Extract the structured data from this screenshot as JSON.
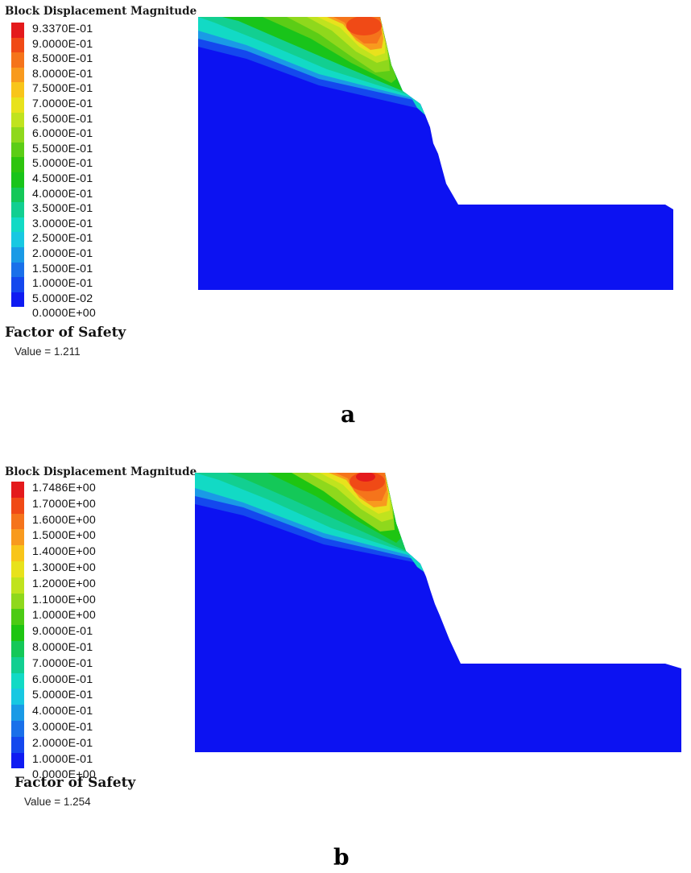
{
  "panels": [
    {
      "legend_title": "Block Displacement Magnitude",
      "legend_values": [
        "9.3370E-01",
        "9.0000E-01",
        "8.5000E-01",
        "8.0000E-01",
        "7.5000E-01",
        "7.0000E-01",
        "6.5000E-01",
        "6.0000E-01",
        "5.5000E-01",
        "5.0000E-01",
        "4.5000E-01",
        "4.0000E-01",
        "3.5000E-01",
        "3.0000E-01",
        "2.5000E-01",
        "2.0000E-01",
        "1.5000E-01",
        "1.0000E-01",
        "5.0000E-02",
        "0.0000E+00"
      ],
      "factor_of_safety_label": "Factor of Safety",
      "factor_of_safety_value": "Value = 1.211",
      "caption": "a"
    },
    {
      "legend_title": "Block Displacement Magnitude",
      "legend_values": [
        "1.7486E+00",
        "1.7000E+00",
        "1.6000E+00",
        "1.5000E+00",
        "1.4000E+00",
        "1.3000E+00",
        "1.2000E+00",
        "1.1000E+00",
        "1.0000E+00",
        "9.0000E-01",
        "8.0000E-01",
        "7.0000E-01",
        "6.0000E-01",
        "5.0000E-01",
        "4.0000E-01",
        "3.0000E-01",
        "2.0000E-01",
        "1.0000E-01",
        "0.0000E+00"
      ],
      "factor_of_safety_label": "Factor of Safety",
      "factor_of_safety_value": "Value = 1.254",
      "caption": "b"
    }
  ],
  "colors": {
    "scale_a": [
      "#e41a1c",
      "#f04a16",
      "#f5741b",
      "#f89a1e",
      "#f8c51a",
      "#e8e21c",
      "#c0e31e",
      "#8fd81c",
      "#5ccd16",
      "#2ec40e",
      "#19c41a",
      "#14c858",
      "#12cf91",
      "#12dac5",
      "#18c8e2",
      "#1a9ae6",
      "#1a70ea",
      "#1448ee",
      "#0f1bf2"
    ],
    "scale_b": [
      "#e41a1c",
      "#f04a16",
      "#f5741b",
      "#f89a1e",
      "#f8c51a",
      "#e8e21c",
      "#c0e31e",
      "#8fd81c",
      "#4ccb14",
      "#1ec512",
      "#14c858",
      "#12cf91",
      "#12dac5",
      "#18c8e2",
      "#1a9ae6",
      "#1a70ea",
      "#1448ee",
      "#0f1bf2"
    ],
    "model_base": "#0c12f2"
  }
}
